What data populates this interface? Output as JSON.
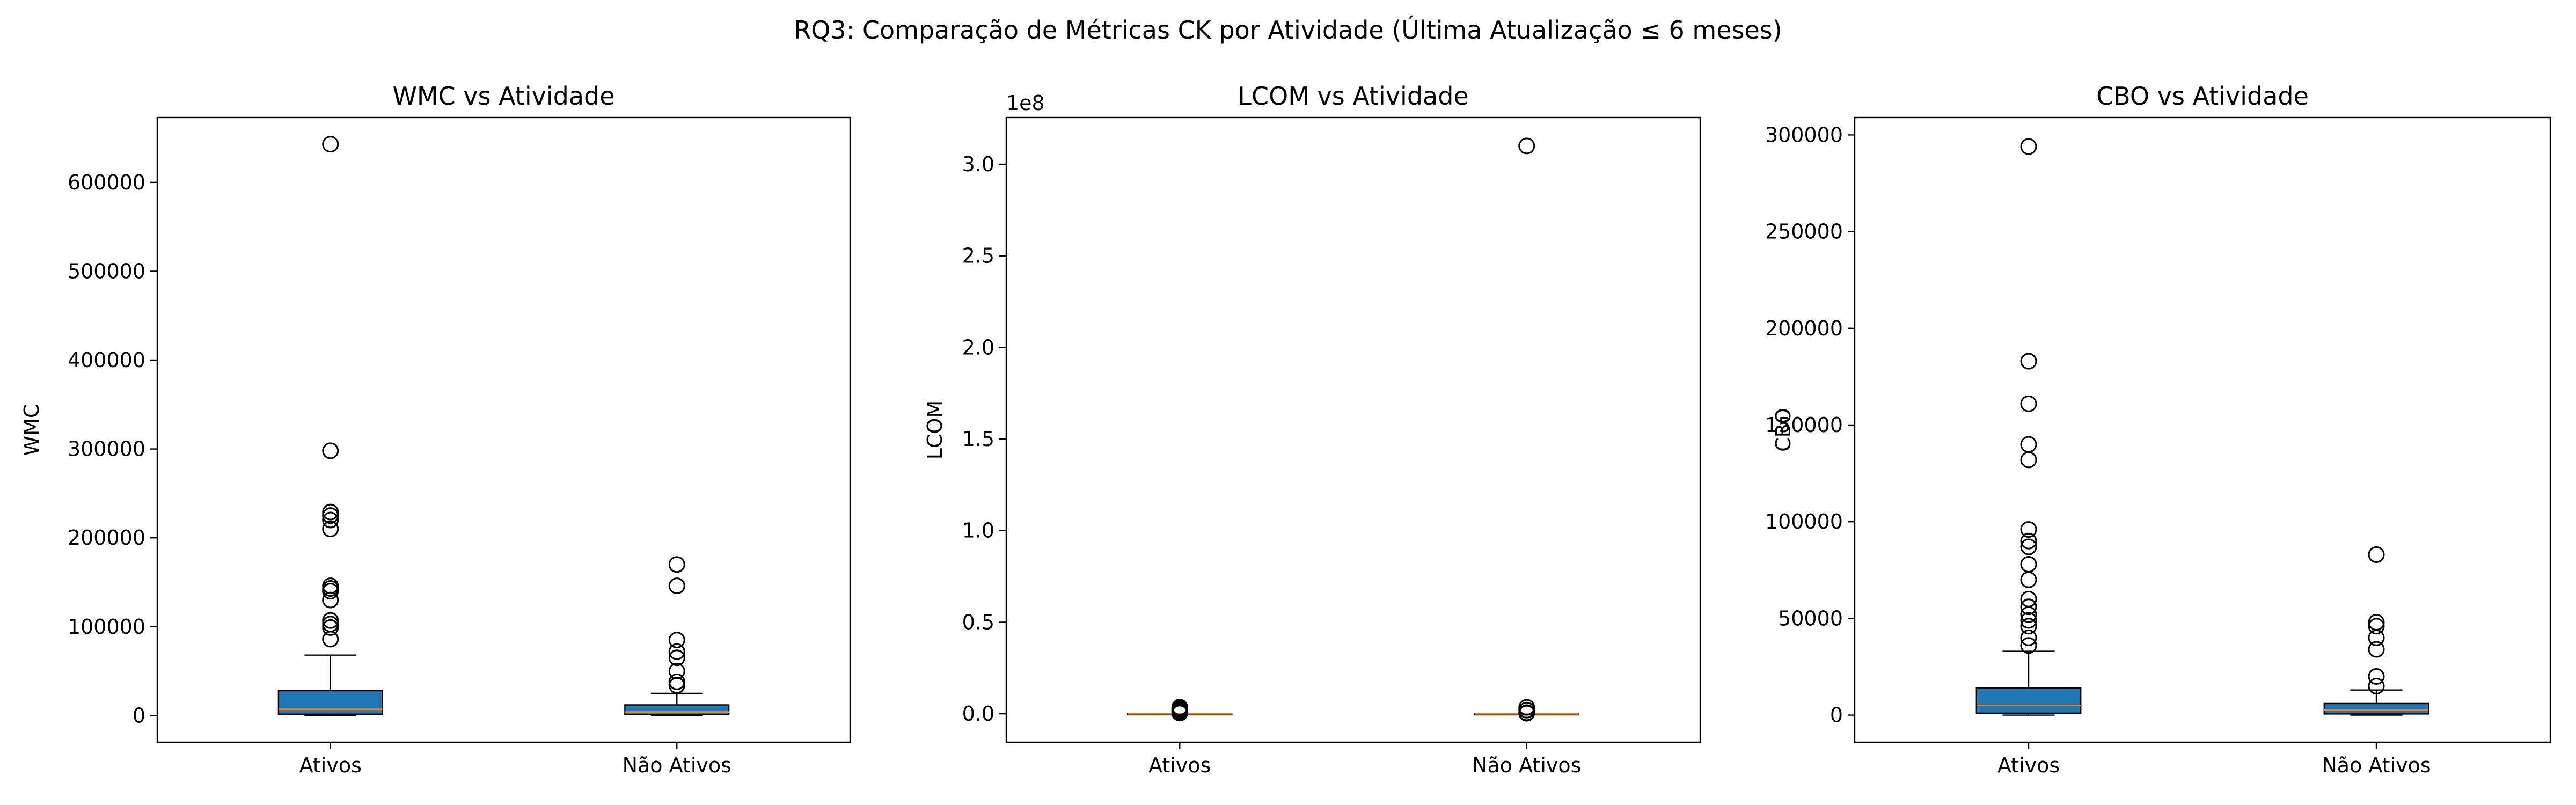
{
  "figure": {
    "suptitle": "RQ3: Comparação de Métricas CK por Atividade (Última Atualização ≤ 6 meses)"
  },
  "chart_data": [
    {
      "type": "box",
      "title": "WMC vs Atividade",
      "xlabel": "",
      "ylabel": "WMC",
      "ylim": [
        -30000,
        673000
      ],
      "yticks": [
        0,
        100000,
        200000,
        300000,
        400000,
        500000,
        600000
      ],
      "ytick_labels": [
        "0",
        "100000",
        "200000",
        "300000",
        "400000",
        "500000",
        "600000"
      ],
      "offset_text": "",
      "grid": false,
      "categories": [
        "Ativos",
        "Não Ativos"
      ],
      "boxes": [
        {
          "name": "Ativos",
          "whisker_low": 0,
          "q1": 1500,
          "median": 7000,
          "q3": 28000,
          "whisker_high": 68000,
          "fliers": [
            643000,
            298000,
            229000,
            225000,
            220000,
            210000,
            146000,
            143000,
            140000,
            130000,
            107000,
            103000,
            99000,
            86000
          ]
        },
        {
          "name": "Não Ativos",
          "whisker_low": 0,
          "q1": 1000,
          "median": 4000,
          "q3": 12000,
          "whisker_high": 25000,
          "fliers": [
            170000,
            146000,
            85000,
            72000,
            65000,
            50000,
            38000,
            34000
          ]
        }
      ],
      "colors": {
        "box_fill": "#1f77b4",
        "median": "#ff7f0e",
        "line": "#000000"
      }
    },
    {
      "type": "box",
      "title": "LCOM vs Atividade",
      "xlabel": "",
      "ylabel": "LCOM",
      "ylim": [
        -15500000,
        325500000
      ],
      "yticks": [
        0,
        50000000,
        100000000,
        150000000,
        200000000,
        250000000,
        300000000
      ],
      "ytick_labels": [
        "0.0",
        "0.5",
        "1.0",
        "1.5",
        "2.0",
        "2.5",
        "3.0"
      ],
      "offset_text": "1e8",
      "grid": false,
      "categories": [
        "Ativos",
        "Não Ativos"
      ],
      "boxes": [
        {
          "name": "Ativos",
          "whisker_low": 0,
          "q1": 0,
          "median": 0,
          "q3": 50000,
          "whisker_high": 120000,
          "fliers": [
            3600000,
            3000000,
            2400000,
            1800000,
            1200000,
            700000,
            400000
          ]
        },
        {
          "name": "Não Ativos",
          "whisker_low": 0,
          "q1": 0,
          "median": 0,
          "q3": 30000,
          "whisker_high": 80000,
          "fliers": [
            310000000,
            3500000,
            2000000,
            600000,
            300000
          ]
        }
      ],
      "colors": {
        "box_fill": "#1f77b4",
        "median": "#ff7f0e",
        "line": "#000000"
      }
    },
    {
      "type": "box",
      "title": "CBO vs Atividade",
      "xlabel": "",
      "ylabel": "CBO",
      "ylim": [
        -14000,
        309000
      ],
      "yticks": [
        0,
        50000,
        100000,
        150000,
        200000,
        250000,
        300000
      ],
      "ytick_labels": [
        "0",
        "50000",
        "100000",
        "150000",
        "200000",
        "250000",
        "300000"
      ],
      "offset_text": "",
      "grid": false,
      "categories": [
        "Ativos",
        "Não Ativos"
      ],
      "boxes": [
        {
          "name": "Ativos",
          "whisker_low": 0,
          "q1": 1000,
          "median": 5000,
          "q3": 14000,
          "whisker_high": 33000,
          "fliers": [
            294000,
            183000,
            161000,
            140000,
            132000,
            96000,
            90000,
            87000,
            78000,
            70000,
            60000,
            56000,
            52000,
            49000,
            46000,
            40000,
            36000
          ]
        },
        {
          "name": "Não Ativos",
          "whisker_low": 0,
          "q1": 600,
          "median": 2500,
          "q3": 6000,
          "whisker_high": 13000,
          "fliers": [
            83000,
            48000,
            46000,
            40000,
            34000,
            20000,
            15000
          ]
        }
      ],
      "colors": {
        "box_fill": "#1f77b4",
        "median": "#ff7f0e",
        "line": "#000000"
      }
    }
  ]
}
